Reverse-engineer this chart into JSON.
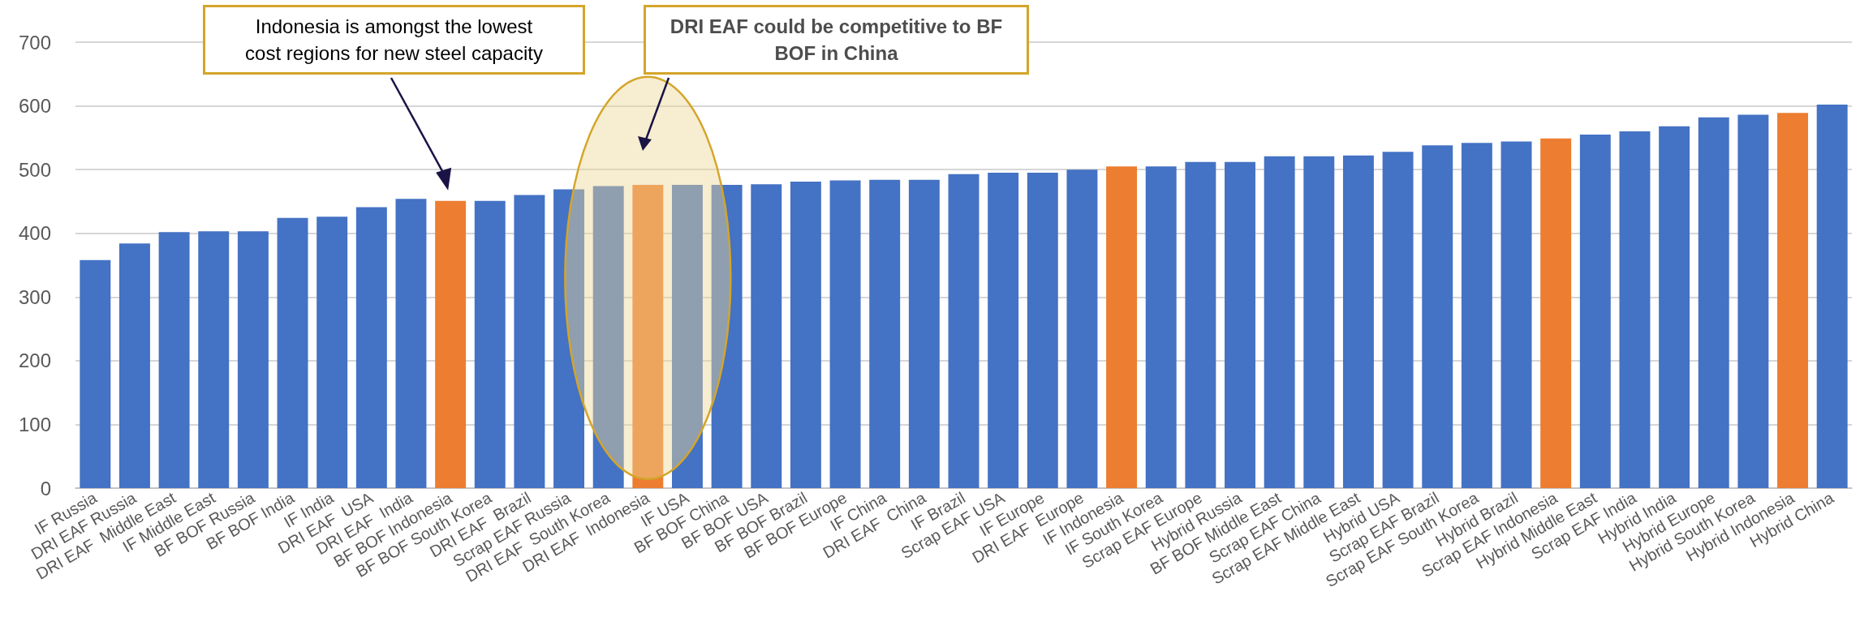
{
  "chart_data": {
    "type": "bar",
    "categories": [
      "IF Russia",
      "DRI EAF Russia",
      "DRI EAF  Middle East",
      "IF Middle East",
      "BF BOF Russia",
      "BF BOF India",
      "IF India",
      "DRI EAF  USA",
      "DRI EAF  India",
      "BF BOF Indonesia",
      "BF BOF South Korea",
      "DRI EAF  Brazil",
      "Scrap EAF Russia",
      "DRI EAF  South Korea",
      "DRI EAF  Indonesia",
      "IF USA",
      "BF BOF China",
      "BF BOF USA",
      "BF BOF Brazil",
      "BF BOF Europe",
      "IF China",
      "DRI EAF  China",
      "IF Brazil",
      "Scrap EAF USA",
      "IF Europe",
      "DRI EAF  Europe",
      "IF Indonesia",
      "IF South Korea",
      "Scrap EAF Europe",
      "Hybrid Russia",
      "BF BOF Middle East",
      "Scrap EAF China",
      "Scrap EAF Middle East",
      "Hybrid USA",
      "Scrap EAF Brazil",
      "Scrap EAF South Korea",
      "Hybrid Brazil",
      "Scrap EAF Indonesia",
      "Hybrid Middle East",
      "Scrap EAF India",
      "Hybrid India",
      "Hybrid Europe",
      "Hybrid South Korea",
      "Hybrid Indonesia",
      "Hybrid China"
    ],
    "values": [
      358,
      384,
      402,
      403,
      403,
      424,
      426,
      441,
      454,
      451,
      451,
      460,
      469,
      474,
      476,
      476,
      476,
      477,
      481,
      483,
      484,
      484,
      493,
      495,
      495,
      500,
      505,
      505,
      512,
      512,
      521,
      521,
      522,
      528,
      538,
      542,
      544,
      549,
      555,
      560,
      568,
      582,
      586,
      589,
      602
    ],
    "colors": [
      "#4472c4",
      "#4472c4",
      "#4472c4",
      "#4472c4",
      "#4472c4",
      "#4472c4",
      "#4472c4",
      "#4472c4",
      "#4472c4",
      "#ed7d31",
      "#4472c4",
      "#4472c4",
      "#4472c4",
      "#4472c4",
      "#ed7d31",
      "#4472c4",
      "#4472c4",
      "#4472c4",
      "#4472c4",
      "#4472c4",
      "#4472c4",
      "#4472c4",
      "#4472c4",
      "#4472c4",
      "#4472c4",
      "#4472c4",
      "#ed7d31",
      "#4472c4",
      "#4472c4",
      "#4472c4",
      "#4472c4",
      "#4472c4",
      "#4472c4",
      "#4472c4",
      "#4472c4",
      "#4472c4",
      "#4472c4",
      "#ed7d31",
      "#4472c4",
      "#4472c4",
      "#4472c4",
      "#4472c4",
      "#4472c4",
      "#ed7d31",
      "#4472c4"
    ],
    "ylim": [
      0,
      700
    ],
    "yticks": [
      0,
      100,
      200,
      300,
      400,
      500,
      600,
      700
    ],
    "grid": "y",
    "annotations": [
      "Indonesia is amongst the lowest cost regions for new steel capacity",
      "DRI EAF could be competitive to BF BOF in China"
    ]
  }
}
